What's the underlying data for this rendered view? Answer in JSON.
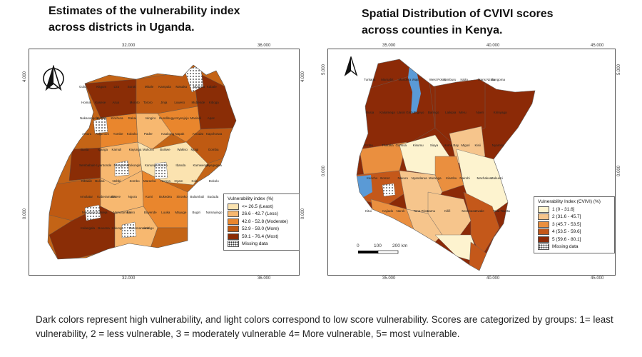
{
  "uganda": {
    "title": "Estimates of the vulnerability index across districts in Uganda.",
    "top_ticks": [
      "32.000",
      "36.000"
    ],
    "bottom_ticks": [
      "32.000",
      "36.000"
    ],
    "left_ticks": [
      "4.000",
      "0.000"
    ],
    "right_ticks": [
      "4.000",
      "0.000"
    ],
    "legend": {
      "title": "Vulnerability index (%)",
      "items": [
        {
          "label": "<=  26.5 (Least)",
          "color": "#fbe3b0"
        },
        {
          "label": "26.6 -  42.7 (Less)",
          "color": "#f7b870"
        },
        {
          "label": "42.8 - 52.8 (Moderate)",
          "color": "#e9862d"
        },
        {
          "label": "52.9 - 59.0 (More)",
          "color": "#bf5a12"
        },
        {
          "label": "59.1 - 76.4 (Most)",
          "color": "#8a2d06"
        },
        {
          "label": "Missing data",
          "color": "hatch"
        }
      ]
    },
    "place_names": [
      "Gulu",
      "Kitgum",
      "Lira",
      "Soroti",
      "Mbale",
      "Kampala",
      "Masaka",
      "Mbarara",
      "Kabale",
      "Hoima",
      "Kasese",
      "Arua",
      "Moroto",
      "Tororo",
      "Jinja",
      "Luwero",
      "Mubende",
      "Kiboga",
      "Nakasongola",
      "Kotido",
      "Kiruhura",
      "Rakai",
      "Isingiro",
      "Bundibugyo",
      "Kyenjojo",
      "Masindi",
      "Apac",
      "Amuru",
      "Adjumani",
      "Yumbe",
      "Koboko",
      "Pader",
      "Kaabong",
      "Napak",
      "Amudat",
      "Kapchorwa",
      "Busia",
      "Iganga",
      "Kamuli",
      "Kayunga",
      "Mukono",
      "Buikwe",
      "Wakiso",
      "Mpigi",
      "Gomba",
      "Sembabule",
      "Lyantonde",
      "Ntungamo",
      "Rukungiri",
      "Kanungu",
      "Kisoro",
      "Ibanda",
      "Kamwenge",
      "Kyegegwa",
      "Kibaale",
      "Buliisa",
      "Nebbi",
      "Zombo",
      "Maracha",
      "Nwoya",
      "Oyam",
      "Kole",
      "Dokolo",
      "Amolatar",
      "Kaberamaido",
      "Serere",
      "Ngora",
      "Kumi",
      "Bukedea",
      "Sironko",
      "Bulambuli",
      "Bududa",
      "Manafwa",
      "Butaleja",
      "Namutumba",
      "Kaliro",
      "Buyende",
      "Luuka",
      "Mayuge",
      "Bugiri",
      "Namayingo",
      "Kalangala",
      "Buvuma",
      "Kalungu",
      "Bukomansimbi",
      "Lwengo"
    ]
  },
  "kenya": {
    "title": "Spatial Distribution of CVIVI scores across counties in Kenya.",
    "top_ticks": [
      "35.000",
      "40.000",
      "45.000"
    ],
    "bottom_ticks": [
      "35.000",
      "40.000",
      "45.000"
    ],
    "left_ticks": [
      "5.000",
      "0.000"
    ],
    "right_ticks": [
      "5.000",
      "0.000"
    ],
    "legend": {
      "title": "Vulnerability Index (CVIVI) (%)",
      "items": [
        {
          "label": "1 (0 - 31.6]",
          "color": "#fdf3cf"
        },
        {
          "label": "2 (31.6 - 45.7]",
          "color": "#f6c58c"
        },
        {
          "label": "3 (45.7 - 53.5]",
          "color": "#ea8f3f"
        },
        {
          "label": "4 (53.5 - 59.6]",
          "color": "#c4581a"
        },
        {
          "label": "5 (59.6 - 80.1]",
          "color": "#8c2a07"
        },
        {
          "label": "Missing data",
          "color": "hatch"
        }
      ]
    },
    "scale": {
      "labels": [
        "0",
        "100",
        "200 km"
      ]
    },
    "place_names": [
      "Turkana",
      "Marsabit",
      "Mandera",
      "Wajir",
      "West Pokot",
      "Samburu",
      "Isiolo",
      "Trans Nzoia",
      "Bungoma",
      "Busia",
      "Kakamega",
      "Uasin Gishu",
      "Elgeyo",
      "Baringo",
      "Laikipia",
      "Meru",
      "Nyeri",
      "Kirinyaga",
      "Embu",
      "Tharaka",
      "Garissa",
      "Kisumu",
      "Siaya",
      "Homa Bay",
      "Migori",
      "Kisii",
      "Nyamira",
      "Kericho",
      "Bomet",
      "Nakuru",
      "Nyandarua",
      "Muranga",
      "Kiambu",
      "Nairobi",
      "Machakos",
      "Makueni",
      "Kitui",
      "Kajiado",
      "Narok",
      "Tana River",
      "Lamu",
      "Kilifi",
      "Mombasa",
      "Kwale",
      "Taita Taveta"
    ]
  },
  "caption": "Dark colors represent high vulnerability, and light colors correspond to low score vulnerability. Scores are categorized by groups: 1= least vulnerability, 2 = less vulnerable, 3 = moderately vulnerable 4= More vulnerable, 5= most vulnerable."
}
